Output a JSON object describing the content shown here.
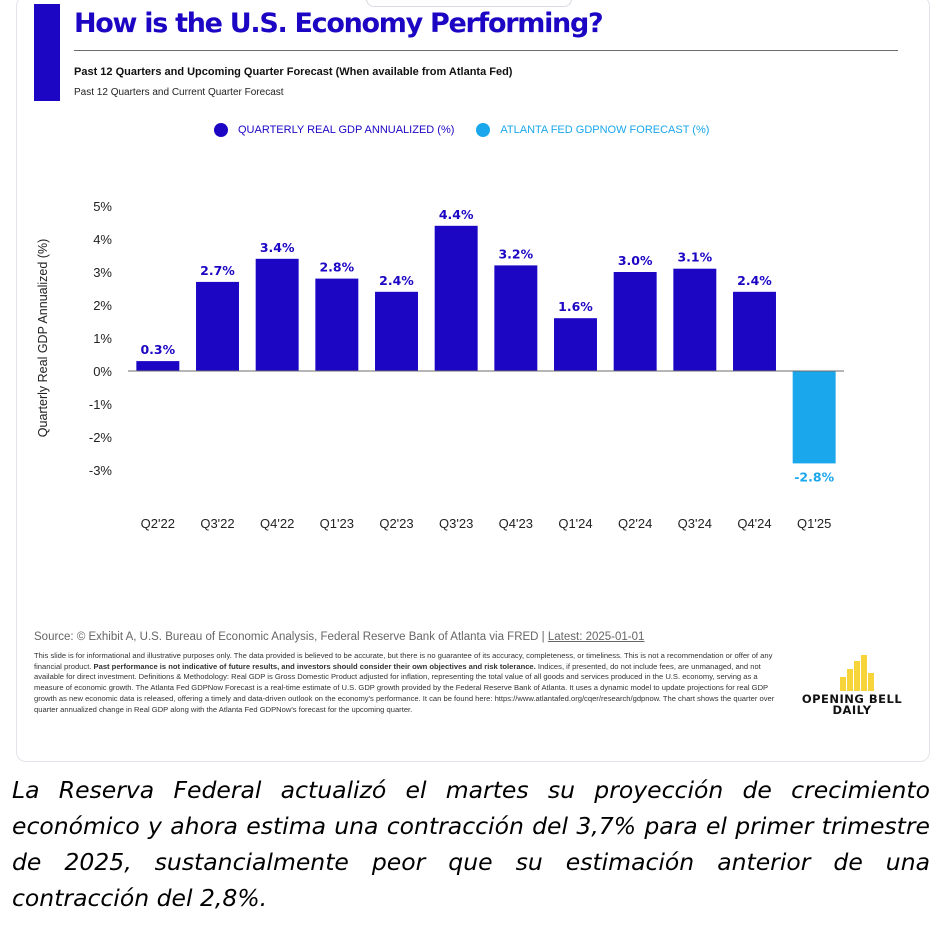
{
  "header": {
    "title": "How is the U.S. Economy Performing?",
    "subtitle": "Past 12 Quarters and Upcoming Quarter Forecast (When available from Atlanta Fed)",
    "subtitle2": "Past 12 Quarters and Current Quarter Forecast"
  },
  "colors": {
    "accent": "#1c06c4",
    "gdp_bar": "#1c06c4",
    "forecast_bar": "#1aa7ec",
    "forecast_label": "#1aa7ec"
  },
  "chart_data": {
    "type": "bar",
    "ylabel": "Quarterly Real GDP Annualized (%)",
    "ylim": [
      -3,
      5
    ],
    "yticks": [
      5,
      4,
      3,
      2,
      1,
      0,
      -1,
      -2,
      -3
    ],
    "ytick_labels": [
      "5%",
      "4%",
      "3%",
      "2%",
      "1%",
      "0%",
      "-1%",
      "-2%",
      "-3%"
    ],
    "grid": false,
    "legend_position": "top",
    "categories": [
      "Q2'22",
      "Q3'22",
      "Q4'22",
      "Q1'23",
      "Q2'23",
      "Q3'23",
      "Q4'23",
      "Q1'24",
      "Q2'24",
      "Q3'24",
      "Q4'24",
      "Q1'25"
    ],
    "series": [
      {
        "name": "QUARTERLY REAL GDP ANNUALIZED (%)",
        "color": "#1c06c4",
        "values": [
          0.3,
          2.7,
          3.4,
          2.8,
          2.4,
          4.4,
          3.2,
          1.6,
          3.0,
          3.1,
          2.4,
          null
        ],
        "labels": [
          "0.3%",
          "2.7%",
          "3.4%",
          "2.8%",
          "2.4%",
          "4.4%",
          "3.2%",
          "1.6%",
          "3.0%",
          "3.1%",
          "2.4%",
          ""
        ]
      },
      {
        "name": "ATLANTA FED GDPNOW FORECAST (%)",
        "color": "#1aa7ec",
        "values": [
          null,
          null,
          null,
          null,
          null,
          null,
          null,
          null,
          null,
          null,
          null,
          -2.8
        ],
        "labels": [
          "",
          "",
          "",
          "",
          "",
          "",
          "",
          "",
          "",
          "",
          "",
          "-2.8%"
        ]
      }
    ]
  },
  "footer": {
    "source_text": "Source: © Exhibit A, U.S. Bureau of Economic Analysis, Federal Reserve Bank of Atlanta via FRED | ",
    "latest": "Latest: 2025-01-01",
    "disclaimer_part1": "This slide is for informational and illustrative purposes only. The data provided is believed to be accurate, but there is no guarantee of its accuracy, completeness, or timeliness. This is not a recommendation or offer of any financial product. ",
    "disclaimer_bold": "Past performance is not indicative of future results, and investors should consider their own objectives and risk tolerance.",
    "disclaimer_part2": " Indices, if presented, do not include fees, are unmanaged, and not available for direct investment. Definitions & Methodology: Real GDP is Gross Domestic Product adjusted for inflation, representing the total value of all goods and services produced in the U.S. economy, serving as a measure of economic growth. The Atlanta Fed GDPNow Forecast is a real-time estimate of U.S. GDP growth provided by the Federal Reserve Bank of Atlanta. It uses a dynamic model to update projections for real GDP growth as new economic data is released, offering a timely and data-driven outlook on the economy's performance. It can be found here: https://www.atlantafed.org/cqer/research/gdpnow. The chart shows the quarter over quarter annualized change in Real GDP along with the Atlanta Fed GDPNow's forecast for the upcoming quarter."
  },
  "logo": {
    "line1": "OPENING BELL",
    "line2": "DAILY",
    "color": "#f6d43a"
  },
  "caption": "La Reserva Federal actualizó el martes su proyección de crecimiento económico y ahora estima una contracción del 3,7% para el primer trimestre de 2025, sustancialmente peor que su estimación anterior de una contracción del 2,8%."
}
